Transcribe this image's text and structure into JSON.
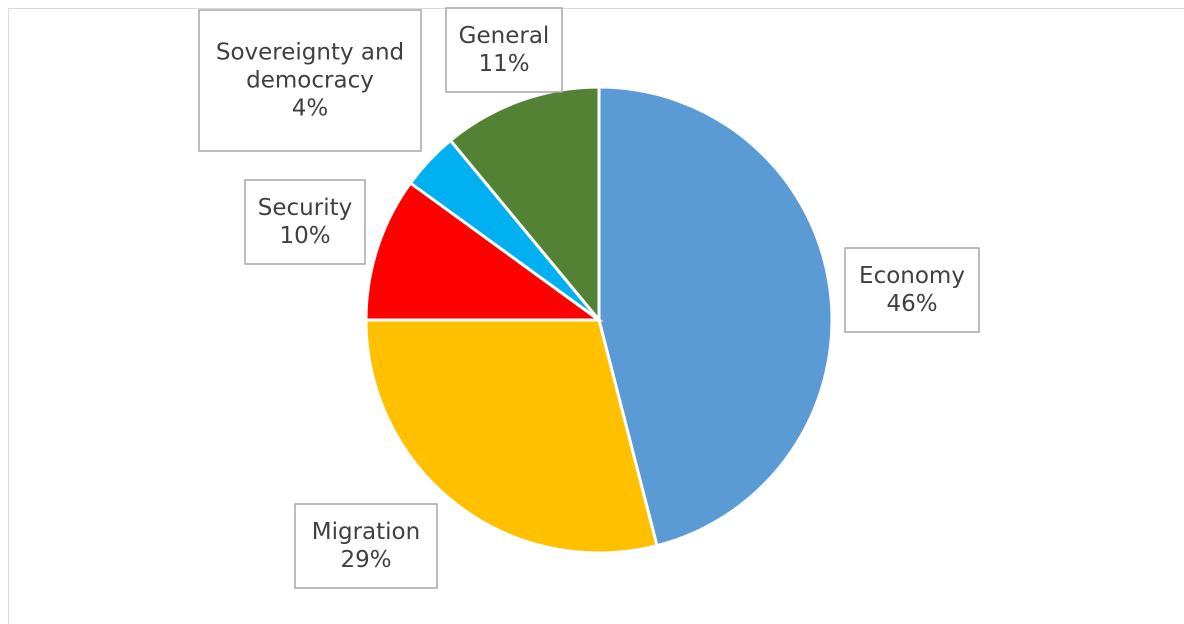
{
  "chart_data": {
    "type": "pie",
    "start_angle_deg": 0,
    "direction": "clockwise",
    "slices": [
      {
        "category": "Economy",
        "value": 46,
        "value_label": "46%",
        "color": "#5b9bd5"
      },
      {
        "category": "Migration",
        "value": 29,
        "value_label": "29%",
        "color": "#ffc000"
      },
      {
        "category": "Security",
        "value": 10,
        "value_label": "10%",
        "color": "#ff0000"
      },
      {
        "category": "Sovereignty and democracy",
        "value": 4,
        "value_label": "4%",
        "color": "#00b0f0"
      },
      {
        "category": "General",
        "value": 11,
        "value_label": "11%",
        "color": "#548235"
      }
    ],
    "legend": "none",
    "data_labels": "category-and-percent in boxes"
  }
}
